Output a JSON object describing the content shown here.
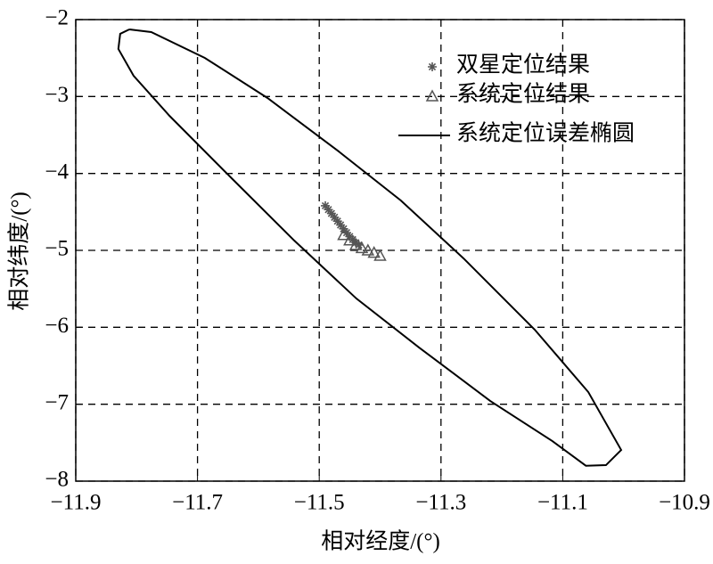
{
  "chart_data": {
    "type": "scatter",
    "xlabel": "相对经度/(°)",
    "ylabel": "相对纬度/(°)",
    "xlim": [
      -11.9,
      -10.9
    ],
    "ylim": [
      -8,
      -2
    ],
    "xticks": [
      {
        "value": -11.9,
        "label": "−11.9"
      },
      {
        "value": -11.7,
        "label": "−11.7"
      },
      {
        "value": -11.5,
        "label": "−11.5"
      },
      {
        "value": -11.3,
        "label": "−11.3"
      },
      {
        "value": -11.1,
        "label": "−11.1"
      },
      {
        "value": -10.9,
        "label": "−10.9"
      }
    ],
    "yticks": [
      {
        "value": -8,
        "label": "−8"
      },
      {
        "value": -7,
        "label": "−7"
      },
      {
        "value": -6,
        "label": "−6"
      },
      {
        "value": -5,
        "label": "−5"
      },
      {
        "value": -4,
        "label": "−4"
      },
      {
        "value": -3,
        "label": "−3"
      },
      {
        "value": -2,
        "label": "−2"
      }
    ],
    "grid": true,
    "legend": "upper right",
    "series": [
      {
        "name": "双星定位结果",
        "marker": "star",
        "color": "#555555",
        "x": [
          -11.49,
          -11.485,
          -11.48,
          -11.475,
          -11.47,
          -11.465,
          -11.46,
          -11.455,
          -11.45,
          -11.445,
          -11.44,
          -11.435
        ],
        "y": [
          -4.42,
          -4.47,
          -4.52,
          -4.57,
          -4.62,
          -4.67,
          -4.72,
          -4.77,
          -4.82,
          -4.86,
          -4.9,
          -4.93
        ]
      },
      {
        "name": "系统定位结果",
        "marker": "triangle",
        "color": "#555555",
        "x": [
          -11.46,
          -11.45,
          -11.44,
          -11.43,
          -11.42,
          -11.41,
          -11.4
        ],
        "y": [
          -4.8,
          -4.87,
          -4.93,
          -4.97,
          -5.0,
          -5.03,
          -5.07
        ]
      },
      {
        "name": "系统定位误差椭圆",
        "marker": "line",
        "color": "#000000",
        "x": [
          -11.812,
          -11.776,
          -11.688,
          -11.585,
          -11.468,
          -11.366,
          -11.263,
          -11.146,
          -11.058,
          -11.004,
          -11.029,
          -11.062,
          -11.117,
          -11.219,
          -11.336,
          -11.439,
          -11.541,
          -11.644,
          -11.746,
          -11.805,
          -11.83,
          -11.827,
          -11.812
        ],
        "y": [
          -2.127,
          -2.162,
          -2.498,
          -3.019,
          -3.714,
          -4.351,
          -5.104,
          -6.031,
          -6.842,
          -7.595,
          -7.792,
          -7.8,
          -7.479,
          -6.958,
          -6.263,
          -5.626,
          -4.873,
          -4.062,
          -3.251,
          -2.73,
          -2.382,
          -2.185,
          -2.127
        ]
      }
    ]
  }
}
